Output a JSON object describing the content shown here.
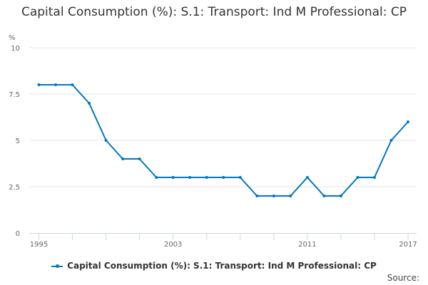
{
  "chart_data": {
    "type": "line",
    "title": "Capital Consumption (%): S.1: Transport: Ind M Professional: CP",
    "ylabel": "%",
    "xlabel": "",
    "x": [
      1995,
      1996,
      1997,
      1998,
      1999,
      2000,
      2001,
      2002,
      2003,
      2004,
      2005,
      2006,
      2007,
      2008,
      2009,
      2010,
      2011,
      2012,
      2013,
      2014,
      2015,
      2016,
      2017
    ],
    "series": [
      {
        "name": "Capital Consumption (%): S.1: Transport: Ind M Professional: CP",
        "values": [
          8,
          8,
          8,
          7,
          5,
          4,
          4,
          3,
          3,
          3,
          3,
          3,
          3,
          2,
          2,
          2,
          3,
          2,
          2,
          3,
          3,
          5,
          6
        ],
        "color": "#0077c0"
      }
    ],
    "ylim": [
      0,
      10
    ],
    "yticks": [
      "0",
      "2.5",
      "5",
      "7.5",
      "10"
    ],
    "xtick_labels": [
      "1995",
      "2003",
      "2011",
      "2017"
    ],
    "grid": true,
    "legend": "bottom"
  },
  "source_label": "Source:"
}
